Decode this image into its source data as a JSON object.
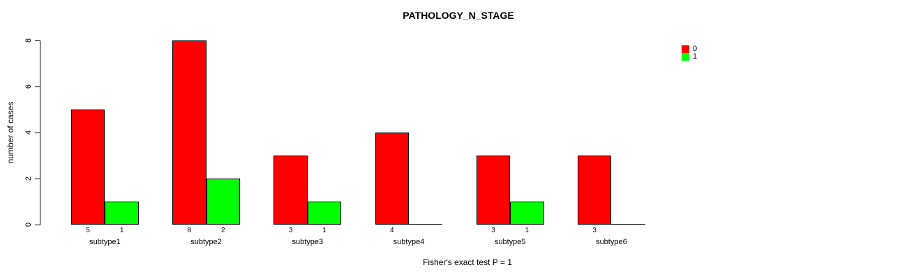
{
  "chart_data": {
    "type": "bar",
    "title": "PATHOLOGY_N_STAGE",
    "xlabel": "Fisher's exact test P = 1",
    "ylabel": "number of cases",
    "categories": [
      "subtype1",
      "subtype2",
      "subtype3",
      "subtype4",
      "subtype5",
      "subtype6"
    ],
    "series": [
      {
        "name": "0",
        "color": "#FF0000",
        "values": [
          5,
          8,
          3,
          4,
          3,
          3
        ]
      },
      {
        "name": "1",
        "color": "#00FF00",
        "values": [
          1,
          2,
          1,
          0,
          1,
          0
        ]
      }
    ],
    "ylim": [
      0,
      8
    ],
    "yticks": [
      0,
      2,
      4,
      6,
      8
    ],
    "grid": false,
    "legend_position": "top-right",
    "bar_value_labels_shown_for_nonzero_only": true
  },
  "colors": {
    "series_0": "#FF0000",
    "series_1": "#00FF00",
    "axis": "#000000",
    "background": "#FFFFFF"
  }
}
